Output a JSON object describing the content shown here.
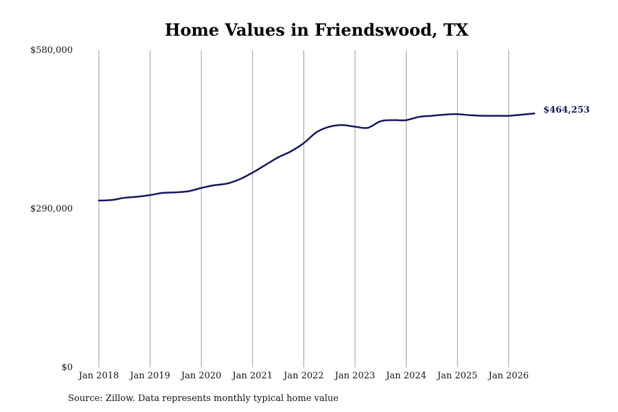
{
  "chart_data": {
    "type": "line",
    "title": "Home Values in Friendswood, TX",
    "xlabel": "",
    "ylabel": "",
    "ylim": [
      0,
      580000
    ],
    "y_ticks": [
      {
        "value": 0,
        "label": "$0"
      },
      {
        "value": 290000,
        "label": "$290,000"
      },
      {
        "value": 580000,
        "label": "$580,000"
      }
    ],
    "x_ticks": [
      {
        "value": 2018.0,
        "label": "Jan 2018"
      },
      {
        "value": 2019.0,
        "label": "Jan 2019"
      },
      {
        "value": 2020.0,
        "label": "Jan 2020"
      },
      {
        "value": 2021.0,
        "label": "Jan 2021"
      },
      {
        "value": 2022.0,
        "label": "Jan 2022"
      },
      {
        "value": 2023.0,
        "label": "Jan 2023"
      },
      {
        "value": 2024.0,
        "label": "Jan 2024"
      },
      {
        "value": 2025.0,
        "label": "Jan 2025"
      },
      {
        "value": 2026.0,
        "label": "Jan 2026"
      }
    ],
    "xlim": [
      2017.8,
      2026.9
    ],
    "grid": "vertical",
    "line_color": "#14145e",
    "end_label": "$464,253",
    "series": [
      {
        "x": [
          2018.0,
          2018.25,
          2018.5,
          2018.75,
          2019.0,
          2019.25,
          2019.5,
          2019.75,
          2020.0,
          2020.25,
          2020.5,
          2020.75,
          2021.0,
          2021.25,
          2021.5,
          2021.75,
          2022.0,
          2022.25,
          2022.5,
          2022.75,
          2023.0,
          2023.25,
          2023.5,
          2023.75,
          2024.0,
          2024.25,
          2024.5,
          2024.75,
          2025.0,
          2025.25,
          2025.5,
          2025.75,
          2026.0,
          2026.25,
          2026.5
        ],
        "y": [
          305000,
          306000,
          310000,
          312000,
          315000,
          319000,
          320000,
          322000,
          328000,
          333000,
          336000,
          344000,
          356000,
          370000,
          384000,
          395000,
          410000,
          430000,
          440000,
          443000,
          440000,
          438000,
          450000,
          452000,
          452000,
          458000,
          460000,
          462000,
          463000,
          461000,
          460000,
          460000,
          460000,
          462000,
          464253
        ]
      }
    ]
  },
  "footer": {
    "source": "Source: Zillow. Data represents monthly typical home value"
  }
}
